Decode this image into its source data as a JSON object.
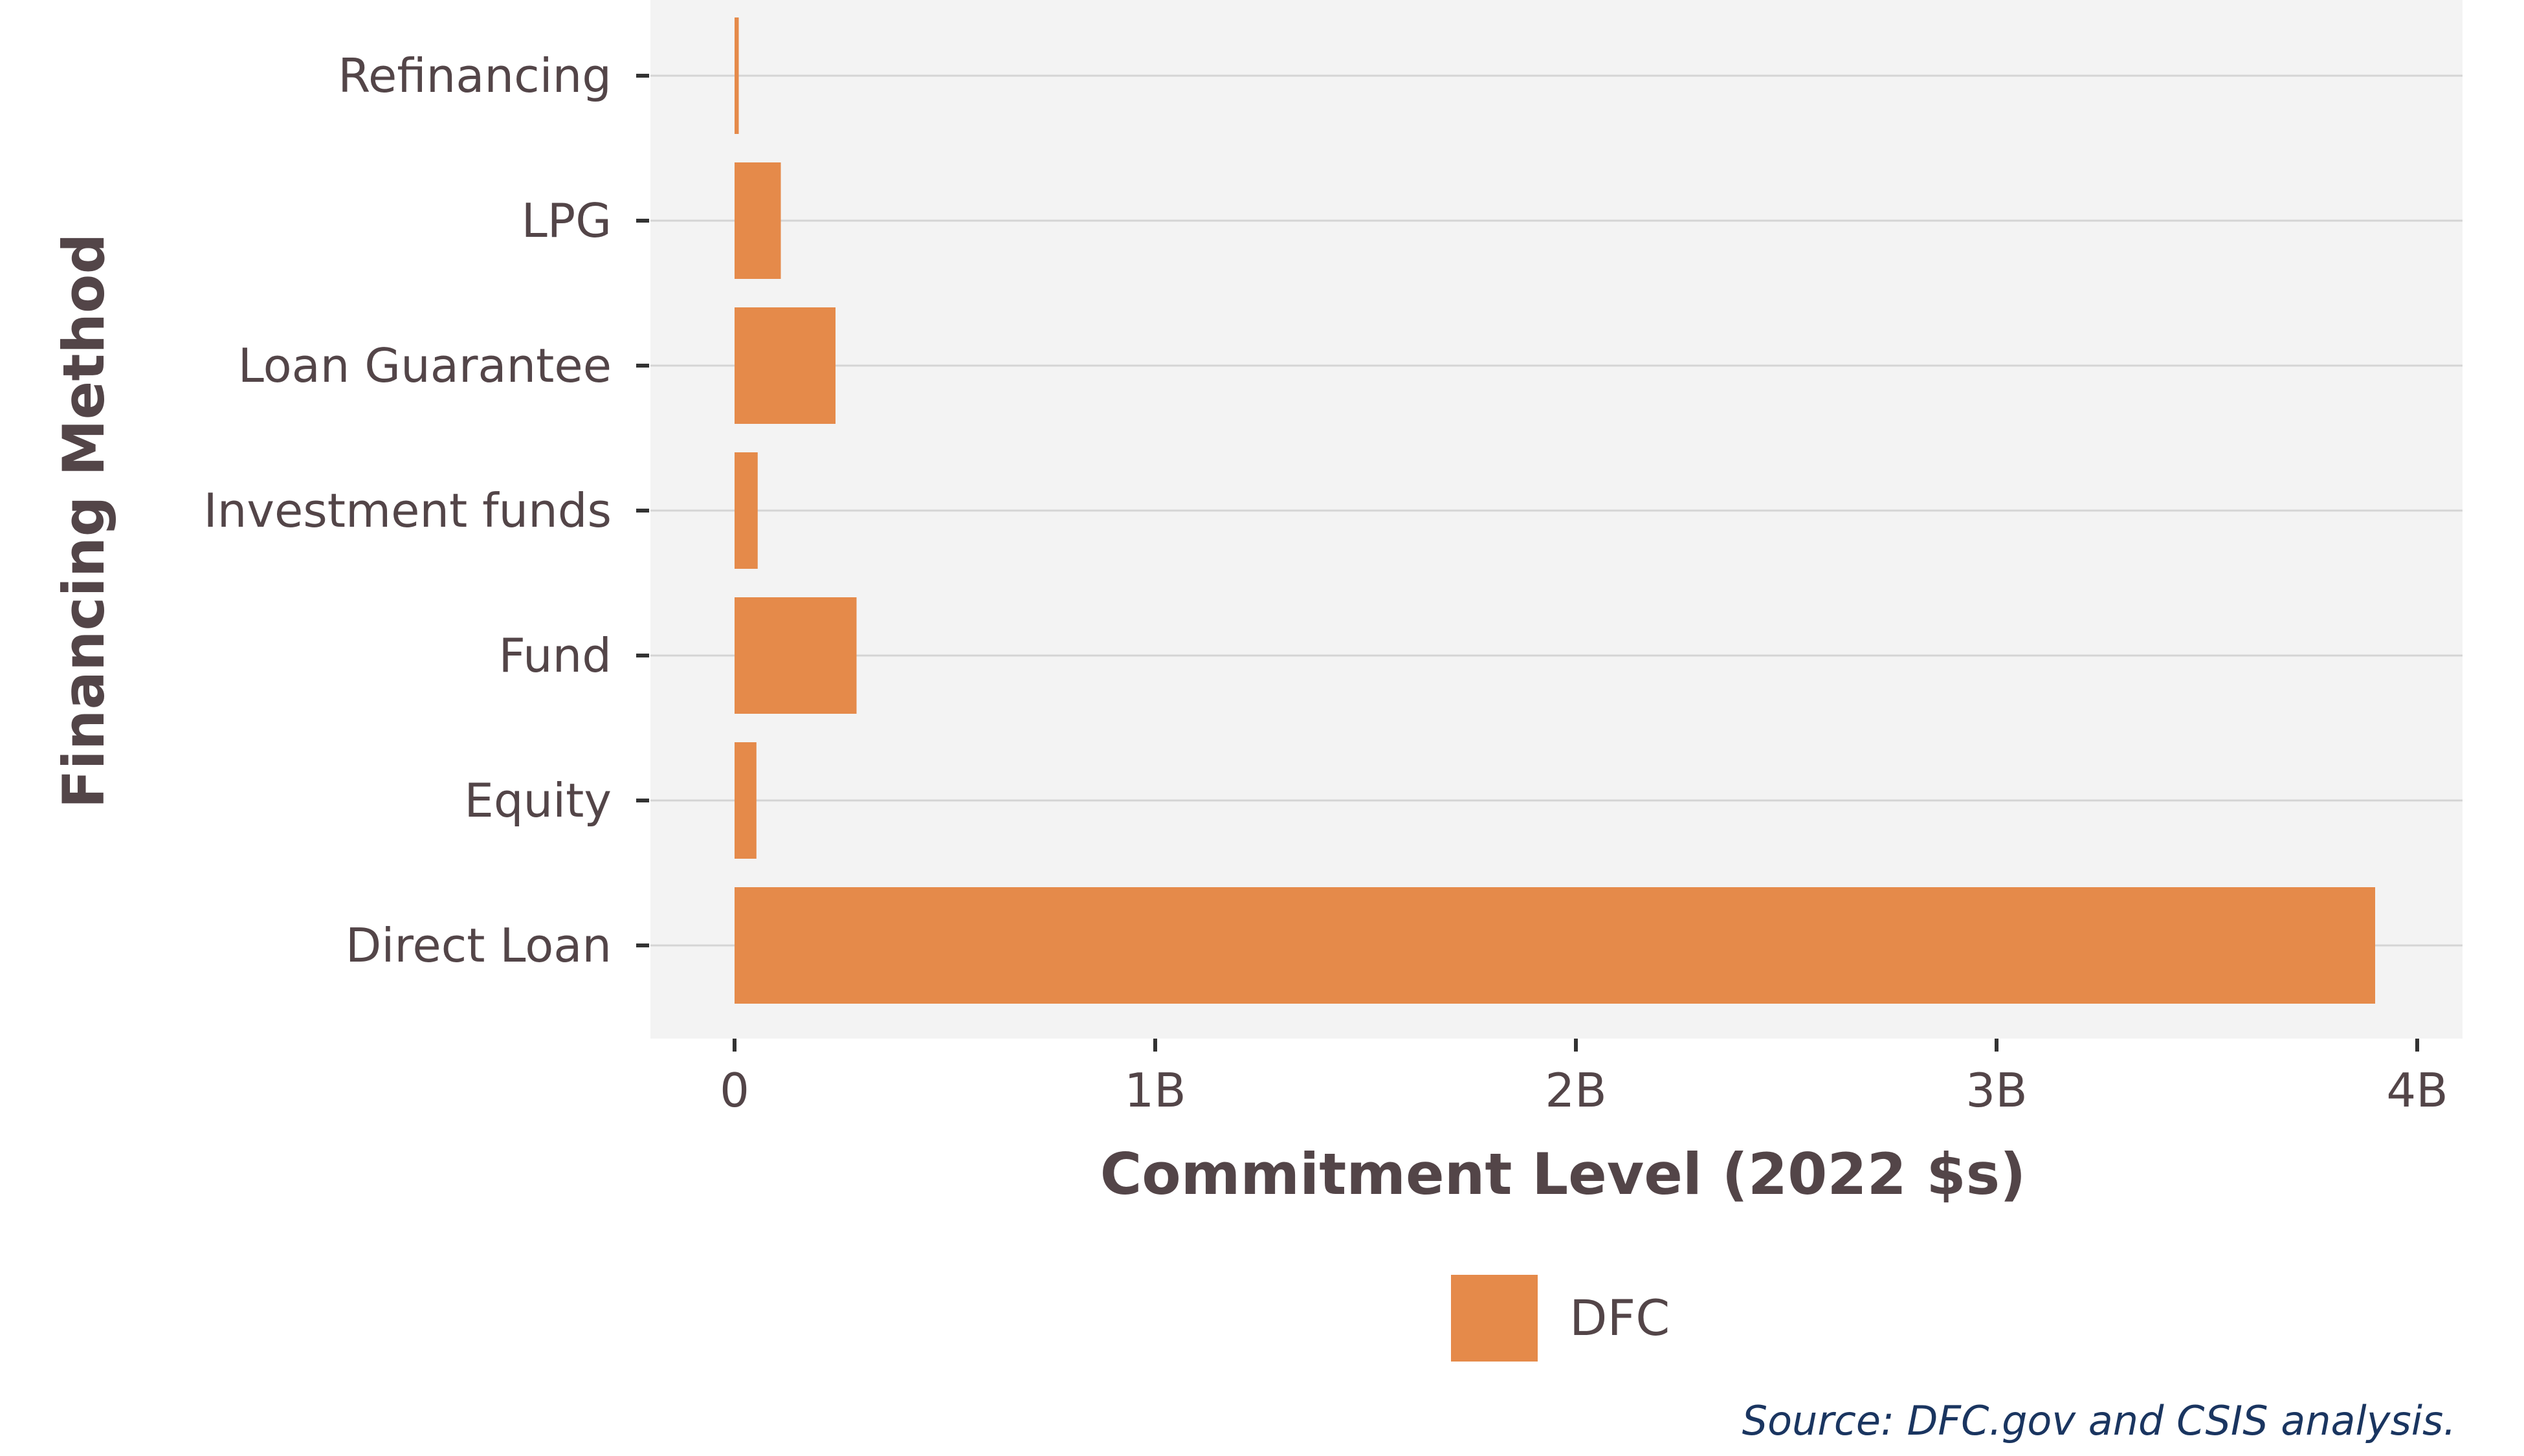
{
  "chart_data": {
    "type": "bar",
    "orientation": "horizontal",
    "categories": [
      "Refinancing",
      "LPG",
      "Loan Guarantee",
      "Investment funds",
      "Fund",
      "Equity",
      "Direct Loan"
    ],
    "series": [
      {
        "name": "DFC",
        "values": [
          10000000,
          110000000,
          240000000,
          55000000,
          290000000,
          52000000,
          3900000000
        ]
      }
    ],
    "xlabel": "Commitment Level (2022 $s)",
    "ylabel": "Financing Method",
    "xlim": [
      0,
      4000000000
    ],
    "x_ticks": [
      0,
      1000000000,
      2000000000,
      3000000000,
      4000000000
    ],
    "x_tick_labels": [
      "0",
      "1B",
      "2B",
      "3B",
      "4B"
    ],
    "grid": "horizontal",
    "legend_position": "bottom",
    "colors": {
      "bar": "#E58A4A",
      "panel": "#F3F3F3",
      "grid": "#D4D4D4",
      "text": "#534548",
      "source": "#1A3560"
    },
    "source_note": "Source:  DFC.gov and CSIS analysis."
  }
}
